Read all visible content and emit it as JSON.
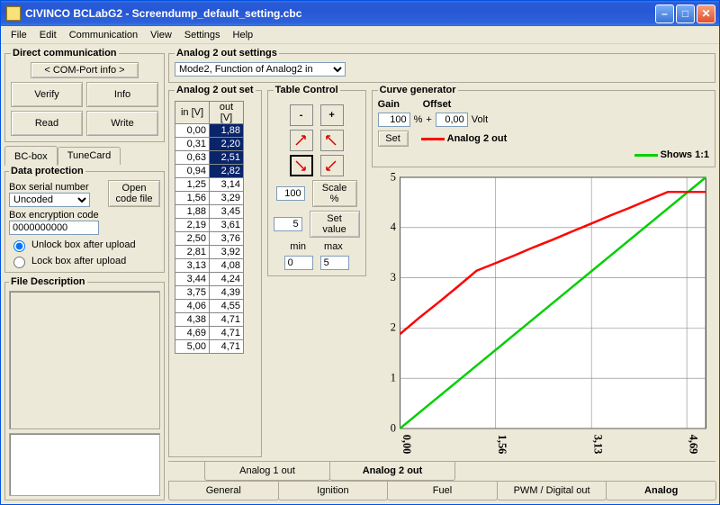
{
  "title": "CIVINCO  BCLabG2 - Screendump_default_setting.cbc",
  "menu": [
    "File",
    "Edit",
    "Communication",
    "View",
    "Settings",
    "Help"
  ],
  "direct_comm": {
    "legend": "Direct communication",
    "comport": "< COM-Port info >",
    "verify": "Verify",
    "info": "Info",
    "read": "Read",
    "write": "Write"
  },
  "left_tabs": {
    "bcbox": "BC-box",
    "tunecard": "TuneCard"
  },
  "data_protection": {
    "legend": "Data protection",
    "serial_label": "Box serial number",
    "serial_value": "Uncoded",
    "open_code": "Open code file",
    "enc_label": "Box encryption code",
    "enc_value": "0000000000",
    "radio_unlock": "Unlock box after upload",
    "radio_lock": "Lock box after upload"
  },
  "file_desc_legend": "File Description",
  "a2_settings": {
    "legend": "Analog 2 out settings",
    "mode": "Mode2, Function of Analog2 in"
  },
  "a2_outset": {
    "legend": "Analog 2 out set",
    "col_in": "in [V]",
    "col_out": "out [V]",
    "rows": [
      {
        "in": "0,00",
        "out": "1,88",
        "sel": true
      },
      {
        "in": "0,31",
        "out": "2,20",
        "sel": true
      },
      {
        "in": "0,63",
        "out": "2,51",
        "sel": true
      },
      {
        "in": "0,94",
        "out": "2,82",
        "sel": true
      },
      {
        "in": "1,25",
        "out": "3,14",
        "sel": false
      },
      {
        "in": "1,56",
        "out": "3,29",
        "sel": false
      },
      {
        "in": "1,88",
        "out": "3,45",
        "sel": false
      },
      {
        "in": "2,19",
        "out": "3,61",
        "sel": false
      },
      {
        "in": "2,50",
        "out": "3,76",
        "sel": false
      },
      {
        "in": "2,81",
        "out": "3,92",
        "sel": false
      },
      {
        "in": "3,13",
        "out": "4,08",
        "sel": false
      },
      {
        "in": "3,44",
        "out": "4,24",
        "sel": false
      },
      {
        "in": "3,75",
        "out": "4,39",
        "sel": false
      },
      {
        "in": "4,06",
        "out": "4,55",
        "sel": false
      },
      {
        "in": "4,38",
        "out": "4,71",
        "sel": false
      },
      {
        "in": "4,69",
        "out": "4,71",
        "sel": false
      },
      {
        "in": "5,00",
        "out": "4,71",
        "sel": false
      }
    ]
  },
  "table_control": {
    "legend": "Table Control",
    "scale_val": "100",
    "scale_lbl": "Scale %",
    "setval_val": "5",
    "setval_lbl": "Set value",
    "min_lbl": "min",
    "max_lbl": "max",
    "min_val": "0",
    "max_val": "5"
  },
  "curve_gen": {
    "legend": "Curve generator",
    "gain_lbl": "Gain",
    "offset_lbl": "Offset",
    "gain_val": "100",
    "offset_val": "0,00",
    "pct": "%",
    "plus": "+",
    "volt": "Volt",
    "set_btn": "Set",
    "leg_a2out": "Analog 2 out",
    "leg_11": "Shows 1:1",
    "color_a2out": "#ff0000",
    "color_11": "#00d000"
  },
  "chart": {
    "xmin": 0,
    "xmax": 5,
    "ymin": 0,
    "ymax": 5,
    "yticks": [
      0,
      1,
      2,
      3,
      4,
      5
    ],
    "xticks": [
      {
        "v": 0.0,
        "l": "0,00"
      },
      {
        "v": 1.56,
        "l": "1,56"
      },
      {
        "v": 3.13,
        "l": "3,13"
      },
      {
        "v": 4.69,
        "l": "4,69"
      }
    ],
    "grid_color": "#808080",
    "bg": "#ffffff",
    "series_red": [
      {
        "x": 0.0,
        "y": 1.88
      },
      {
        "x": 0.31,
        "y": 2.2
      },
      {
        "x": 0.63,
        "y": 2.51
      },
      {
        "x": 0.94,
        "y": 2.82
      },
      {
        "x": 1.25,
        "y": 3.14
      },
      {
        "x": 1.56,
        "y": 3.29
      },
      {
        "x": 1.88,
        "y": 3.45
      },
      {
        "x": 2.19,
        "y": 3.61
      },
      {
        "x": 2.5,
        "y": 3.76
      },
      {
        "x": 2.81,
        "y": 3.92
      },
      {
        "x": 3.13,
        "y": 4.08
      },
      {
        "x": 3.44,
        "y": 4.24
      },
      {
        "x": 3.75,
        "y": 4.39
      },
      {
        "x": 4.06,
        "y": 4.55
      },
      {
        "x": 4.38,
        "y": 4.71
      },
      {
        "x": 4.69,
        "y": 4.71
      },
      {
        "x": 5.0,
        "y": 4.71
      }
    ],
    "series_green": [
      {
        "x": 0,
        "y": 0
      },
      {
        "x": 5,
        "y": 5
      }
    ],
    "line_width": 2.2
  },
  "bottom_tabs": {
    "row1": [
      {
        "label": "Analog 1 out",
        "active": false
      },
      {
        "label": "Analog 2 out",
        "active": true
      }
    ],
    "row2": [
      {
        "label": "General",
        "active": false
      },
      {
        "label": "Ignition",
        "active": false
      },
      {
        "label": "Fuel",
        "active": false
      },
      {
        "label": "PWM / Digital out",
        "active": false
      },
      {
        "label": "Analog",
        "active": true
      }
    ]
  }
}
